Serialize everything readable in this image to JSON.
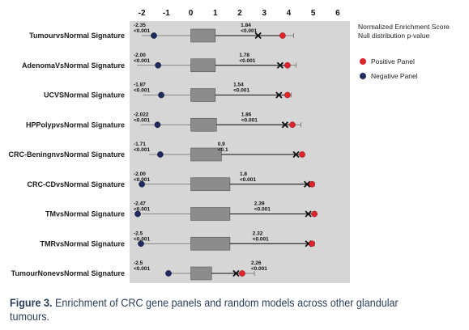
{
  "caption": {
    "label": "Figure 3.",
    "text": "Enrichment of CRC gene panels and random models across other glandular tumours."
  },
  "colors": {
    "plot_background": "#d6d6d6",
    "box_fill": "#8c8c8c",
    "positive": "#e0242c",
    "negative": "#1f2a5e",
    "whisker": "#6e6e6e"
  },
  "chart_data": {
    "type": "boxplot",
    "xlim": [
      -2.5,
      6.5
    ],
    "xticks": [
      -2,
      -1,
      0,
      1,
      2,
      3,
      4,
      5,
      6
    ],
    "grid": false,
    "legend_position": "right",
    "legend_title": [
      "Normalized Enrichment Score",
      "Null distribution p-value"
    ],
    "legend": [
      {
        "name": "Positive Panel",
        "color": "#e0242c",
        "marker": "circle"
      },
      {
        "name": "Negative Panel",
        "color": "#1f2a5e",
        "marker": "circle"
      }
    ],
    "rows": [
      {
        "label": "TumourvsNormal  Signature",
        "neg_nes": -2.35,
        "neg_text": "-2.35",
        "neg_p": "<0.001",
        "pos_nes": 1.84,
        "pos_text": "1.84",
        "pos_p": "<0.001",
        "box": [
          0.0,
          1.0
        ],
        "whisker": [
          -2.0,
          4.2
        ],
        "x_marker": 2.75,
        "pos_point": 3.75
      },
      {
        "label": "AdenomaVsNormal  Signature",
        "neg_nes": -2.0,
        "neg_text": "-2.00",
        "neg_p": "<0.001",
        "pos_nes": 1.78,
        "pos_text": "1.78",
        "pos_p": "<0.001",
        "box": [
          0.0,
          1.0
        ],
        "whisker": [
          -2.2,
          4.3
        ],
        "x_marker": 3.65,
        "pos_point": 3.95
      },
      {
        "label": "UCVSNormal  Signature",
        "neg_nes": -1.87,
        "neg_text": "-1.87",
        "neg_p": "<0.001",
        "pos_nes": 1.54,
        "pos_text": "1.54",
        "pos_p": "<0.001",
        "box": [
          0.0,
          1.0
        ],
        "whisker": [
          -1.95,
          4.1
        ],
        "x_marker": 3.6,
        "pos_point": 3.95
      },
      {
        "label": "HPPolypvsNormal  Signature",
        "neg_nes": -2.022,
        "neg_text": "-2.022",
        "neg_p": "<0.001",
        "pos_nes": 1.86,
        "pos_text": "1.86",
        "pos_p": "<0.001",
        "box": [
          0.0,
          1.05
        ],
        "whisker": [
          -2.05,
          4.5
        ],
        "x_marker": 3.85,
        "pos_point": 4.15
      },
      {
        "label": "CRC-BeningnvsNormal  Signature",
        "neg_nes": -1.71,
        "neg_text": "-1.71",
        "neg_p": "<0.001",
        "pos_nes": 0.9,
        "pos_text": "0.9",
        "pos_p": "<0.1",
        "box": [
          0.0,
          1.25
        ],
        "whisker": [
          -1.7,
          4.6
        ],
        "x_marker": 4.3,
        "pos_point": 4.55
      },
      {
        "label": "CRC-CDvsNormal  Signature",
        "neg_nes": -2.0,
        "neg_text": "-2.00",
        "neg_p": "<0.001",
        "pos_nes": 1.8,
        "pos_text": "1.8",
        "pos_p": "<0.001",
        "box": [
          0.0,
          1.6
        ],
        "whisker": [
          -2.0,
          5.05
        ],
        "x_marker": 4.75,
        "pos_point": 4.95
      },
      {
        "label": "TMvsNormal  Signature",
        "neg_nes": -2.47,
        "neg_text": "-2.47",
        "neg_p": "<0.001",
        "pos_nes": 2.39,
        "pos_text": "2.39",
        "pos_p": "<0.001",
        "box": [
          0.0,
          1.6
        ],
        "whisker": [
          -2.0,
          5.1
        ],
        "x_marker": 4.8,
        "pos_point": 5.05
      },
      {
        "label": "TMRvsNormal  Signature",
        "neg_nes": -2.5,
        "neg_text": "-2.5",
        "neg_p": "<0.001",
        "pos_nes": 2.32,
        "pos_text": "2.32",
        "pos_p": "<0.001",
        "box": [
          0.0,
          1.6
        ],
        "whisker": [
          -2.05,
          5.05
        ],
        "x_marker": 4.8,
        "pos_point": 4.95
      },
      {
        "label": "TumourNonevsNormal  Signature",
        "neg_nes": -2.5,
        "neg_text": "-2.5",
        "neg_p": "<0.001",
        "pos_nes": 2.26,
        "pos_text": "2.26",
        "pos_p": "<0.001",
        "box": [
          0.0,
          0.85
        ],
        "whisker": [
          -1.0,
          2.6
        ],
        "x_marker": 1.85,
        "pos_point": 2.1
      }
    ]
  }
}
